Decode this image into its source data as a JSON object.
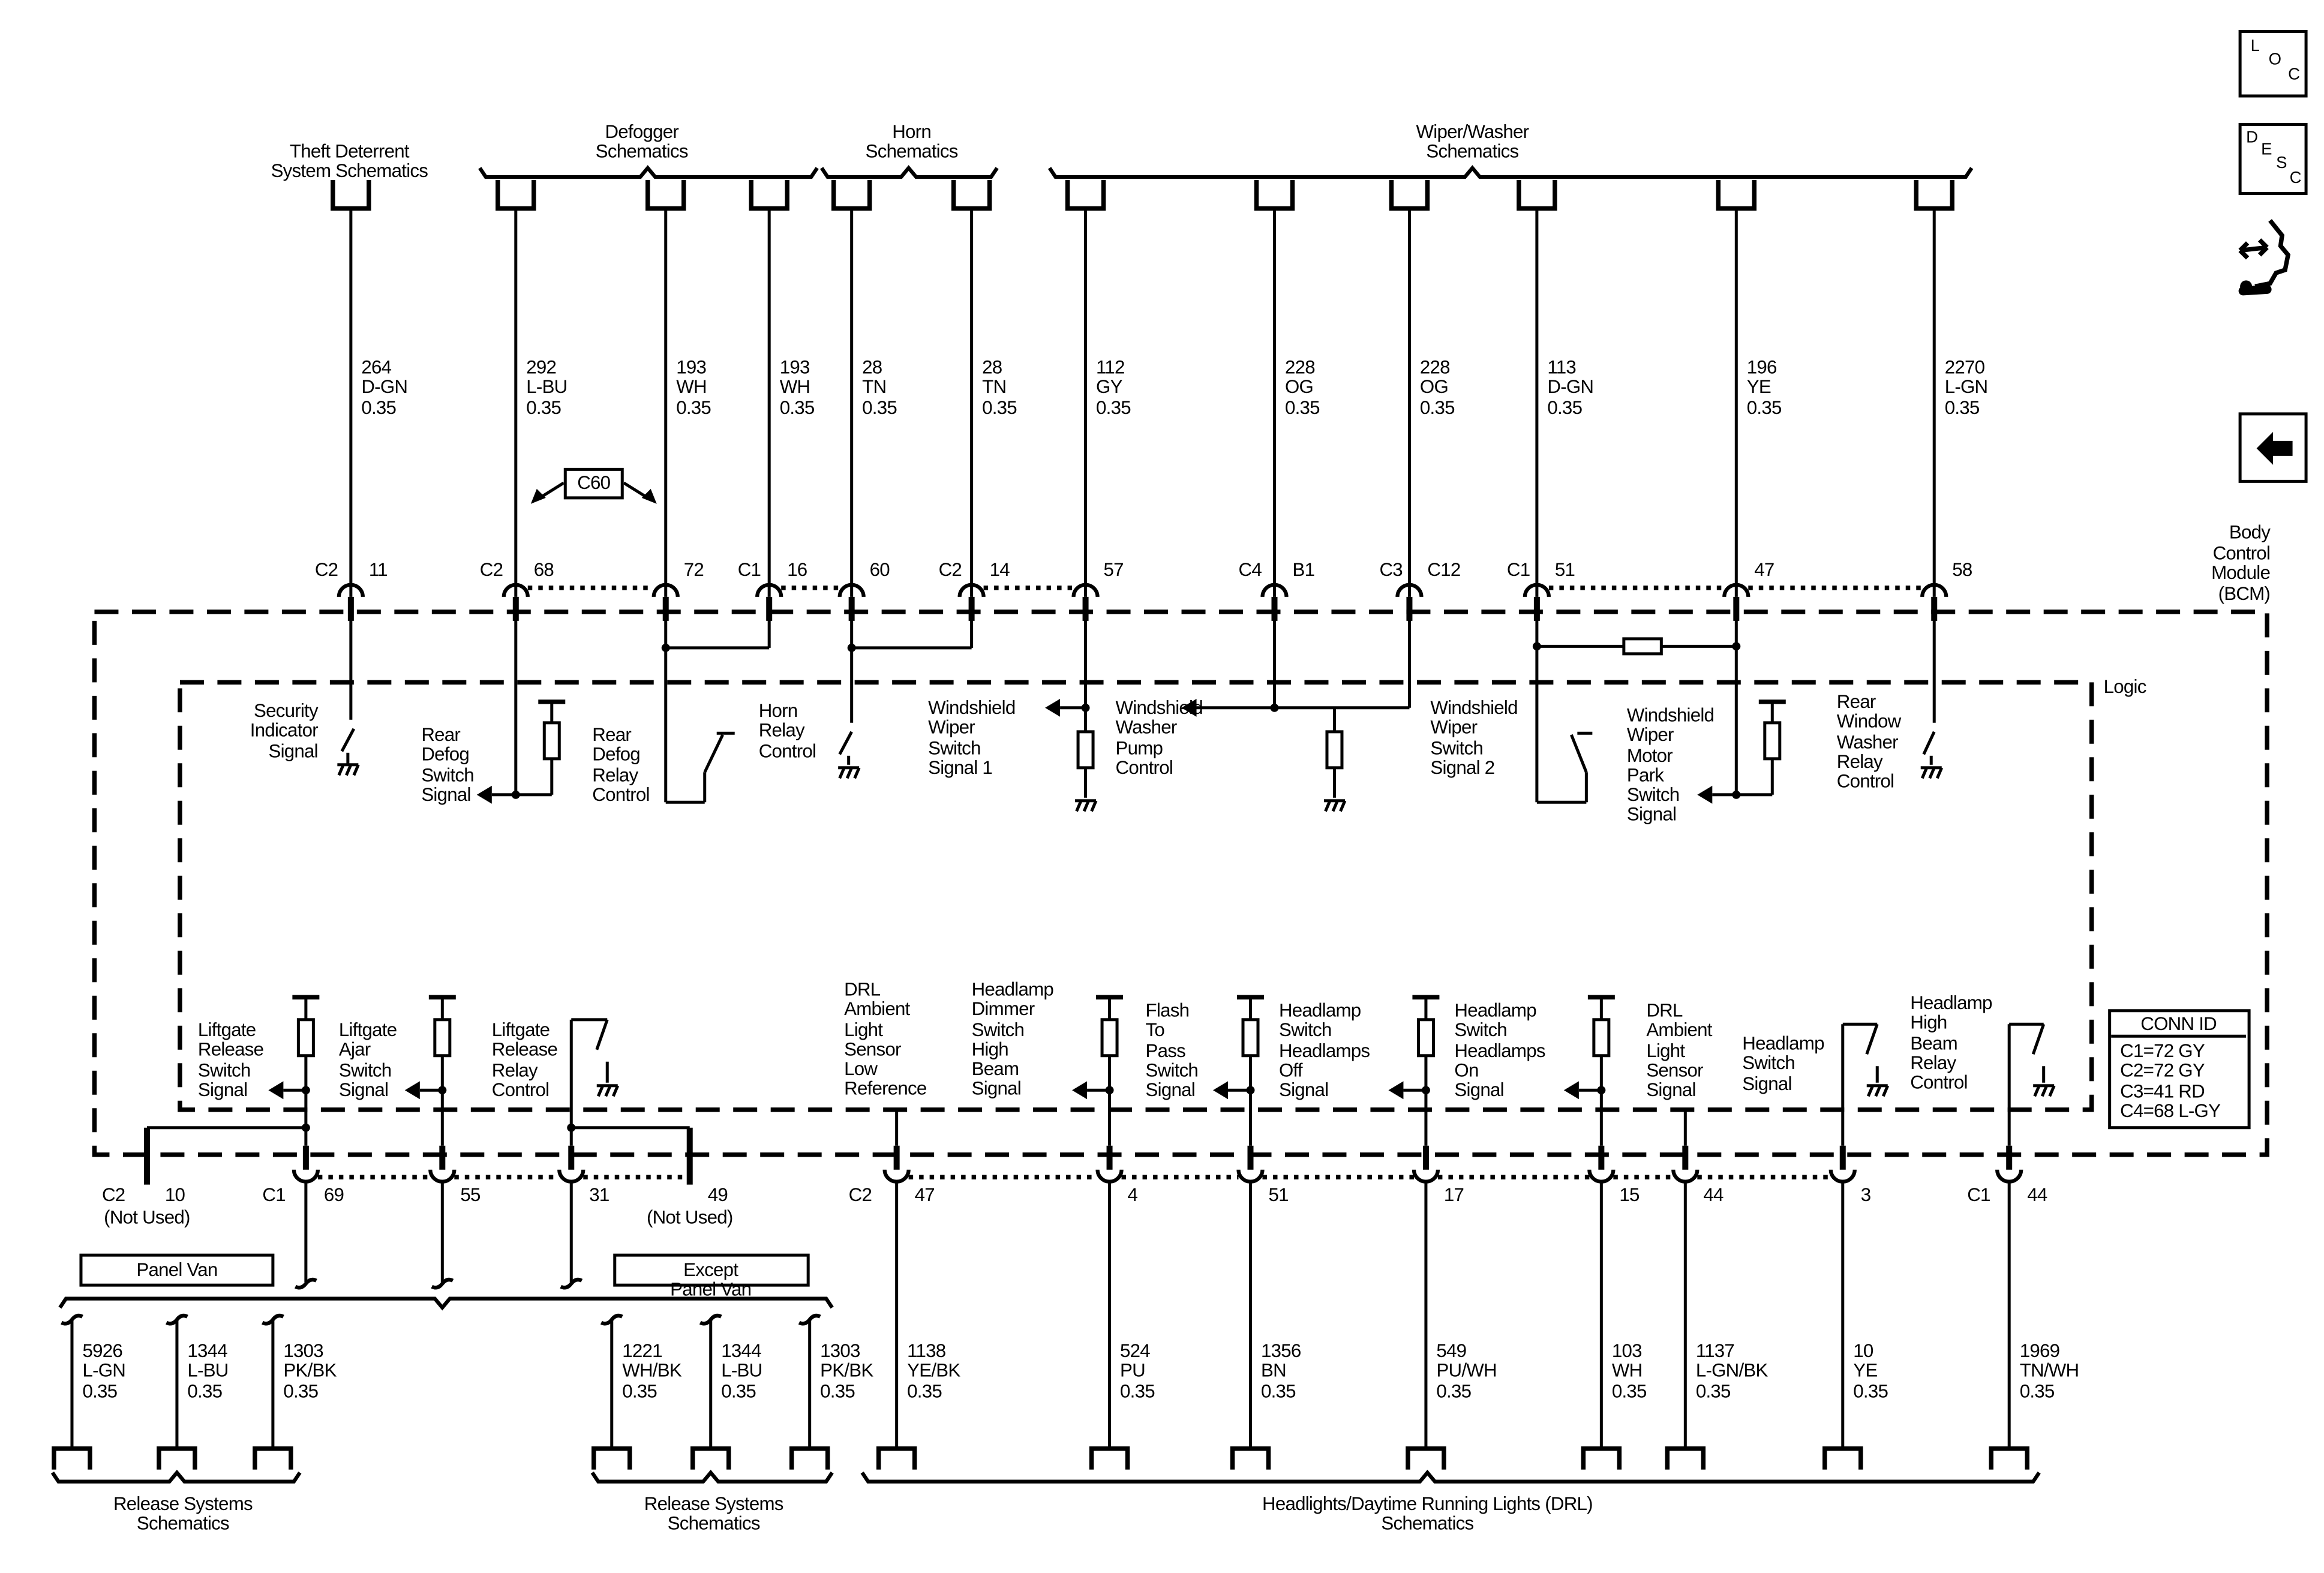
{
  "top_groups": {
    "theft": "Theft Deterrent\nSystem Schematics",
    "defogger": "Defogger\nSchematics",
    "horn": "Horn\nSchematics",
    "wiper": "Wiper/Washer\nSchematics"
  },
  "top_wires": [
    {
      "circuit": "264",
      "color": "D-GN",
      "size": "0.35",
      "conn": "C2",
      "pin": "11"
    },
    {
      "circuit": "292",
      "color": "L-BU",
      "size": "0.35",
      "conn": "C2",
      "pin": "68"
    },
    {
      "circuit": "193",
      "color": "WH",
      "size": "0.35",
      "conn": "",
      "pin": "72"
    },
    {
      "circuit": "193",
      "color": "WH",
      "size": "0.35",
      "conn": "C1",
      "pin": "16"
    },
    {
      "circuit": "28",
      "color": "TN",
      "size": "0.35",
      "conn": "",
      "pin": "60"
    },
    {
      "circuit": "28",
      "color": "TN",
      "size": "0.35",
      "conn": "C2",
      "pin": "14"
    },
    {
      "circuit": "112",
      "color": "GY",
      "size": "0.35",
      "conn": "",
      "pin": "57"
    },
    {
      "circuit": "228",
      "color": "OG",
      "size": "0.35",
      "conn": "C4",
      "pin": "B1"
    },
    {
      "circuit": "228",
      "color": "OG",
      "size": "0.35",
      "conn": "C3",
      "pin": "C12"
    },
    {
      "circuit": "113",
      "color": "D-GN",
      "size": "0.35",
      "conn": "C1",
      "pin": "51"
    },
    {
      "circuit": "196",
      "color": "YE",
      "size": "0.35",
      "conn": "",
      "pin": "47"
    },
    {
      "circuit": "2270",
      "color": "L-GN",
      "size": "0.35",
      "conn": "",
      "pin": "58"
    }
  ],
  "splice_label": "C60",
  "module_label": "Body\nControl\nModule\n(BCM)",
  "logic_label": "Logic",
  "top_functions": [
    "Security\nIndicator\nSignal",
    "Rear\nDefog\nSwitch\nSignal",
    "Rear\nDefog\nRelay\nControl",
    "Horn\nRelay\nControl",
    "Windshield\nWiper\nSwitch\nSignal 1",
    "Windshield\nWasher\nPump\nControl",
    "Windshield\nWiper\nSwitch\nSignal 2",
    "Windshield\nWiper\nMotor\nPark\nSwitch\nSignal",
    "Rear\nWindow\nWasher\nRelay\nControl"
  ],
  "bottom_functions": [
    "Liftgate\nRelease\nSwitch\nSignal",
    "Liftgate\nAjar\nSwitch\nSignal",
    "Liftgate\nRelease\nRelay\nControl",
    "DRL\nAmbient\nLight\nSensor\nLow\nReference",
    "Headlamp\nDimmer\nSwitch\nHigh\nBeam\nSignal",
    "Flash\nTo\nPass\nSwitch\nSignal",
    "Headlamp\nSwitch\nHeadlamps\nOff\nSignal",
    "Headlamp\nSwitch\nHeadlamps\nOn\nSignal",
    "DRL\nAmbient\nLight\nSensor\nSignal",
    "Headlamp\nSwitch\nSignal",
    "Headlamp\nHigh\nBeam\nRelay\nControl"
  ],
  "bottom_pins": [
    {
      "conn": "C2",
      "pin": "10",
      "note": "(Not Used)"
    },
    {
      "conn": "C1",
      "pin": "69"
    },
    {
      "conn": "",
      "pin": "55"
    },
    {
      "conn": "",
      "pin": "31"
    },
    {
      "conn": "",
      "pin": "49",
      "note": "(Not Used)"
    },
    {
      "conn": "C2",
      "pin": "47"
    },
    {
      "conn": "",
      "pin": "4"
    },
    {
      "conn": "",
      "pin": "51"
    },
    {
      "conn": "",
      "pin": "17"
    },
    {
      "conn": "",
      "pin": "15"
    },
    {
      "conn": "",
      "pin": "44"
    },
    {
      "conn": "",
      "pin": "3"
    },
    {
      "conn": "C1",
      "pin": "44"
    }
  ],
  "conn_id": {
    "title": "CONN ID",
    "rows": "C1=72 GY\nC2=72 GY\nC3=41 RD\nC4=68 L-GY"
  },
  "options": {
    "panel_van": "Panel Van",
    "except_panel_van": "Except Panel Van"
  },
  "bottom_wires": [
    {
      "circuit": "5926",
      "color": "L-GN",
      "size": "0.35"
    },
    {
      "circuit": "1344",
      "color": "L-BU",
      "size": "0.35"
    },
    {
      "circuit": "1303",
      "color": "PK/BK",
      "size": "0.35"
    },
    {
      "circuit": "1221",
      "color": "WH/BK",
      "size": "0.35"
    },
    {
      "circuit": "1344",
      "color": "L-BU",
      "size": "0.35"
    },
    {
      "circuit": "1303",
      "color": "PK/BK",
      "size": "0.35"
    },
    {
      "circuit": "1138",
      "color": "YE/BK",
      "size": "0.35"
    },
    {
      "circuit": "524",
      "color": "PU",
      "size": "0.35"
    },
    {
      "circuit": "1356",
      "color": "BN",
      "size": "0.35"
    },
    {
      "circuit": "549",
      "color": "PU/WH",
      "size": "0.35"
    },
    {
      "circuit": "103",
      "color": "WH",
      "size": "0.35"
    },
    {
      "circuit": "1137",
      "color": "L-GN/BK",
      "size": "0.35"
    },
    {
      "circuit": "10",
      "color": "YE",
      "size": "0.35"
    },
    {
      "circuit": "1969",
      "color": "TN/WH",
      "size": "0.35"
    }
  ],
  "bottom_groups": {
    "release1": "Release Systems\nSchematics",
    "release2": "Release Systems\nSchematics",
    "headlights": "Headlights/Daytime Running Lights (DRL)\nSchematics"
  },
  "nav_icons": {
    "loc": {
      "icon": "location-icon",
      "text": "LOC"
    },
    "desc": {
      "icon": "description-icon",
      "text": "DESC"
    },
    "connector": {
      "icon": "connector-wrench-icon"
    },
    "back": {
      "icon": "back-arrow-icon"
    }
  }
}
